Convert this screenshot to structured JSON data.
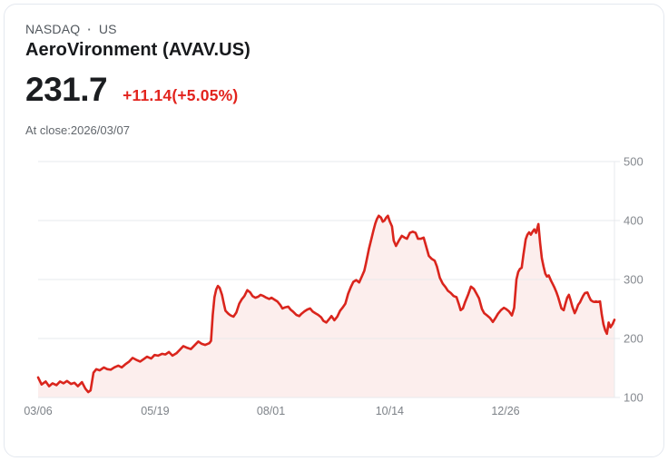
{
  "header": {
    "exchange": "NASDAQ",
    "separator": "·",
    "region": "US",
    "title": "AeroVironment (AVAV.US)"
  },
  "quote": {
    "price": "231.7",
    "change": "+11.14(+5.05%)",
    "as_of": "At close:2026/03/07"
  },
  "colors": {
    "line": "#da251d",
    "area_fill": "rgba(218,37,29,0.08)",
    "change_text": "#e2231d",
    "grid": "#e7e9ec",
    "axis_label": "#85898f",
    "x_label": "#7d8288"
  },
  "chart_data": {
    "type": "area",
    "series_name": "AVAV.US close price",
    "y_ticks": [
      100,
      200,
      300,
      400,
      500
    ],
    "y_range": [
      100,
      500
    ],
    "x_ticks": [
      {
        "label": "03/06",
        "pos": 0.0
      },
      {
        "label": "05/19",
        "pos": 0.203
      },
      {
        "label": "08/01",
        "pos": 0.404
      },
      {
        "label": "10/14",
        "pos": 0.61
      },
      {
        "label": "12/26",
        "pos": 0.811
      }
    ],
    "grid": true,
    "legend_position": "none",
    "last_price": 231.7,
    "points": [
      [
        0,
        134
      ],
      [
        0.006,
        122
      ],
      [
        0.013,
        127
      ],
      [
        0.019,
        119
      ],
      [
        0.025,
        124
      ],
      [
        0.032,
        121
      ],
      [
        0.038,
        127
      ],
      [
        0.044,
        124
      ],
      [
        0.05,
        128
      ],
      [
        0.057,
        123
      ],
      [
        0.063,
        125
      ],
      [
        0.069,
        119
      ],
      [
        0.076,
        126
      ],
      [
        0.082,
        115
      ],
      [
        0.087,
        109
      ],
      [
        0.091,
        112
      ],
      [
        0.096,
        142
      ],
      [
        0.101,
        148
      ],
      [
        0.107,
        146
      ],
      [
        0.114,
        151
      ],
      [
        0.12,
        148
      ],
      [
        0.126,
        147
      ],
      [
        0.132,
        151
      ],
      [
        0.139,
        154
      ],
      [
        0.145,
        151
      ],
      [
        0.151,
        156
      ],
      [
        0.158,
        161
      ],
      [
        0.164,
        167
      ],
      [
        0.17,
        164
      ],
      [
        0.177,
        161
      ],
      [
        0.183,
        165
      ],
      [
        0.189,
        169
      ],
      [
        0.196,
        166
      ],
      [
        0.202,
        172
      ],
      [
        0.208,
        171
      ],
      [
        0.215,
        174
      ],
      [
        0.221,
        173
      ],
      [
        0.227,
        177
      ],
      [
        0.233,
        171
      ],
      [
        0.24,
        175
      ],
      [
        0.246,
        181
      ],
      [
        0.252,
        187
      ],
      [
        0.259,
        184
      ],
      [
        0.265,
        182
      ],
      [
        0.271,
        188
      ],
      [
        0.278,
        195
      ],
      [
        0.284,
        191
      ],
      [
        0.29,
        189
      ],
      [
        0.297,
        192
      ],
      [
        0.3,
        196
      ],
      [
        0.303,
        240
      ],
      [
        0.306,
        270
      ],
      [
        0.309,
        283
      ],
      [
        0.312,
        289
      ],
      [
        0.315,
        286
      ],
      [
        0.319,
        274
      ],
      [
        0.322,
        260
      ],
      [
        0.325,
        247
      ],
      [
        0.33,
        242
      ],
      [
        0.334,
        239
      ],
      [
        0.339,
        237
      ],
      [
        0.344,
        244
      ],
      [
        0.349,
        259
      ],
      [
        0.353,
        266
      ],
      [
        0.358,
        272
      ],
      [
        0.363,
        282
      ],
      [
        0.368,
        278
      ],
      [
        0.372,
        272
      ],
      [
        0.377,
        269
      ],
      [
        0.382,
        271
      ],
      [
        0.386,
        274
      ],
      [
        0.391,
        272
      ],
      [
        0.396,
        269
      ],
      [
        0.401,
        267
      ],
      [
        0.405,
        269
      ],
      [
        0.41,
        266
      ],
      [
        0.415,
        263
      ],
      [
        0.42,
        257
      ],
      [
        0.424,
        251
      ],
      [
        0.429,
        253
      ],
      [
        0.434,
        254
      ],
      [
        0.438,
        249
      ],
      [
        0.443,
        245
      ],
      [
        0.448,
        240
      ],
      [
        0.453,
        238
      ],
      [
        0.457,
        242
      ],
      [
        0.462,
        246
      ],
      [
        0.467,
        249
      ],
      [
        0.472,
        251
      ],
      [
        0.476,
        246
      ],
      [
        0.481,
        243
      ],
      [
        0.486,
        240
      ],
      [
        0.491,
        236
      ],
      [
        0.495,
        230
      ],
      [
        0.5,
        227
      ],
      [
        0.505,
        233
      ],
      [
        0.509,
        238
      ],
      [
        0.514,
        231
      ],
      [
        0.519,
        237
      ],
      [
        0.524,
        247
      ],
      [
        0.528,
        252
      ],
      [
        0.533,
        259
      ],
      [
        0.538,
        276
      ],
      [
        0.543,
        288
      ],
      [
        0.547,
        296
      ],
      [
        0.552,
        299
      ],
      [
        0.557,
        295
      ],
      [
        0.562,
        306
      ],
      [
        0.566,
        315
      ],
      [
        0.569,
        328
      ],
      [
        0.574,
        352
      ],
      [
        0.579,
        372
      ],
      [
        0.582,
        384
      ],
      [
        0.585,
        395
      ],
      [
        0.588,
        403
      ],
      [
        0.591,
        408
      ],
      [
        0.595,
        405
      ],
      [
        0.598,
        398
      ],
      [
        0.601,
        400
      ],
      [
        0.604,
        405
      ],
      [
        0.607,
        408
      ],
      [
        0.61,
        399
      ],
      [
        0.614,
        390
      ],
      [
        0.617,
        366
      ],
      [
        0.621,
        357
      ],
      [
        0.626,
        366
      ],
      [
        0.631,
        374
      ],
      [
        0.636,
        371
      ],
      [
        0.64,
        369
      ],
      [
        0.645,
        379
      ],
      [
        0.65,
        381
      ],
      [
        0.655,
        379
      ],
      [
        0.659,
        369
      ],
      [
        0.664,
        369
      ],
      [
        0.669,
        371
      ],
      [
        0.673,
        357
      ],
      [
        0.678,
        340
      ],
      [
        0.683,
        335
      ],
      [
        0.688,
        332
      ],
      [
        0.692,
        322
      ],
      [
        0.697,
        303
      ],
      [
        0.702,
        293
      ],
      [
        0.707,
        287
      ],
      [
        0.711,
        281
      ],
      [
        0.716,
        277
      ],
      [
        0.721,
        272
      ],
      [
        0.726,
        270
      ],
      [
        0.73,
        258
      ],
      [
        0.733,
        248
      ],
      [
        0.737,
        251
      ],
      [
        0.741,
        262
      ],
      [
        0.746,
        274
      ],
      [
        0.751,
        288
      ],
      [
        0.756,
        284
      ],
      [
        0.76,
        277
      ],
      [
        0.765,
        268
      ],
      [
        0.77,
        250
      ],
      [
        0.774,
        243
      ],
      [
        0.779,
        239
      ],
      [
        0.784,
        235
      ],
      [
        0.789,
        228
      ],
      [
        0.793,
        234
      ],
      [
        0.798,
        242
      ],
      [
        0.803,
        248
      ],
      [
        0.808,
        252
      ],
      [
        0.812,
        250
      ],
      [
        0.817,
        246
      ],
      [
        0.822,
        239
      ],
      [
        0.826,
        252
      ],
      [
        0.83,
        300
      ],
      [
        0.833,
        313
      ],
      [
        0.836,
        318
      ],
      [
        0.839,
        320
      ],
      [
        0.842,
        342
      ],
      [
        0.846,
        368
      ],
      [
        0.849,
        376
      ],
      [
        0.852,
        380
      ],
      [
        0.855,
        376
      ],
      [
        0.858,
        381
      ],
      [
        0.861,
        385
      ],
      [
        0.864,
        379
      ],
      [
        0.868,
        394
      ],
      [
        0.871,
        362
      ],
      [
        0.874,
        336
      ],
      [
        0.877,
        322
      ],
      [
        0.88,
        310
      ],
      [
        0.883,
        305
      ],
      [
        0.886,
        307
      ],
      [
        0.89,
        298
      ],
      [
        0.893,
        292
      ],
      [
        0.896,
        286
      ],
      [
        0.899,
        279
      ],
      [
        0.902,
        271
      ],
      [
        0.905,
        261
      ],
      [
        0.908,
        251
      ],
      [
        0.912,
        248
      ],
      [
        0.915,
        259
      ],
      [
        0.918,
        269
      ],
      [
        0.921,
        274
      ],
      [
        0.924,
        265
      ],
      [
        0.927,
        254
      ],
      [
        0.931,
        243
      ],
      [
        0.934,
        249
      ],
      [
        0.937,
        257
      ],
      [
        0.94,
        261
      ],
      [
        0.943,
        267
      ],
      [
        0.946,
        273
      ],
      [
        0.949,
        277
      ],
      [
        0.953,
        278
      ],
      [
        0.956,
        271
      ],
      [
        0.959,
        265
      ],
      [
        0.962,
        263
      ],
      [
        0.965,
        262
      ],
      [
        0.968,
        263
      ],
      [
        0.971,
        262
      ],
      [
        0.975,
        263
      ],
      [
        0.978,
        241
      ],
      [
        0.981,
        224
      ],
      [
        0.984,
        214
      ],
      [
        0.987,
        208
      ],
      [
        0.99,
        227
      ],
      [
        0.993,
        219
      ],
      [
        0.997,
        225
      ],
      [
        1,
        231.7
      ]
    ]
  }
}
